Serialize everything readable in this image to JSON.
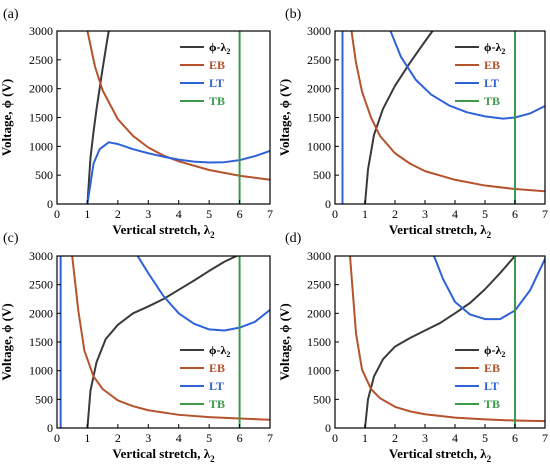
{
  "colors": {
    "phi": "#3a3a3a",
    "eb": "#b5532c",
    "lt": "#2f62d6",
    "tb": "#3e9a4a",
    "axis": "#000000"
  },
  "chart_data": [
    {
      "panel_label": "(a)",
      "type": "line",
      "xlabel": "Vertical stretch, λ",
      "xlabel_sub": "2",
      "ylabel": "Voltage, ϕ (V)",
      "xlim": [
        0,
        7
      ],
      "ylim": [
        0,
        3000
      ],
      "xticks": [
        0,
        1,
        2,
        3,
        4,
        5,
        6,
        7
      ],
      "yticks": [
        0,
        500,
        1000,
        1500,
        2000,
        2500,
        3000
      ],
      "legend_position": "top-right",
      "series": [
        {
          "name": "ϕ-λ",
          "name_sub": "2",
          "key": "phi",
          "x": [
            1.0,
            1.1,
            1.2,
            1.3,
            1.4,
            1.5,
            1.6,
            1.7
          ],
          "y": [
            0,
            800,
            1250,
            1650,
            2000,
            2350,
            2680,
            3000
          ]
        },
        {
          "name": "EB",
          "key": "eb",
          "x": [
            1.0,
            1.25,
            1.5,
            2.0,
            2.5,
            3.0,
            3.5,
            4.0,
            5.0,
            6.0,
            7.0
          ],
          "y": [
            3000,
            2380,
            1970,
            1470,
            1180,
            980,
            840,
            740,
            590,
            490,
            420
          ]
        },
        {
          "name": "LT",
          "key": "lt",
          "x": [
            1.0,
            1.2,
            1.4,
            1.7,
            2.0,
            2.5,
            3.0,
            3.5,
            4.0,
            4.5,
            5.0,
            5.5,
            6.0,
            6.5,
            7.0
          ],
          "y": [
            0,
            700,
            950,
            1070,
            1040,
            950,
            880,
            820,
            770,
            735,
            720,
            725,
            760,
            830,
            920
          ]
        },
        {
          "name": "TB",
          "key": "tb",
          "x": [
            6.0,
            6.0
          ],
          "y": [
            0,
            3000
          ]
        }
      ]
    },
    {
      "panel_label": "(b)",
      "type": "line",
      "xlabel": "Vertical stretch, λ",
      "xlabel_sub": "2",
      "ylabel": "Voltage, ϕ (V)",
      "xlim": [
        0,
        7
      ],
      "ylim": [
        0,
        3000
      ],
      "xticks": [
        0,
        1,
        2,
        3,
        4,
        5,
        6,
        7
      ],
      "yticks": [
        0,
        500,
        1000,
        1500,
        2000,
        2500,
        3000
      ],
      "legend_position": "top-right",
      "series": [
        {
          "name": "ϕ-λ",
          "name_sub": "2",
          "key": "phi",
          "x": [
            1.0,
            1.1,
            1.3,
            1.6,
            2.0,
            2.5,
            3.0,
            3.25
          ],
          "y": [
            0,
            600,
            1200,
            1650,
            2050,
            2450,
            2820,
            3000
          ]
        },
        {
          "name": "EB",
          "key": "eb",
          "x": [
            0.55,
            0.7,
            0.9,
            1.2,
            1.5,
            2.0,
            2.5,
            3.0,
            4.0,
            5.0,
            6.0,
            7.0
          ],
          "y": [
            3000,
            2450,
            1950,
            1500,
            1180,
            880,
            700,
            570,
            420,
            320,
            260,
            220
          ]
        },
        {
          "name": "LT",
          "key": "lt",
          "x": [
            1.85,
            2.2,
            2.7,
            3.2,
            3.8,
            4.4,
            5.0,
            5.6,
            6.0,
            6.5,
            7.0
          ],
          "y": [
            3000,
            2550,
            2150,
            1900,
            1710,
            1590,
            1520,
            1480,
            1500,
            1570,
            1700
          ]
        },
        {
          "name": "LT",
          "key": "lt",
          "x": [
            0.25,
            0.25
          ],
          "y": [
            0,
            3000
          ]
        },
        {
          "name": "TB",
          "key": "tb",
          "x": [
            6.0,
            6.0
          ],
          "y": [
            0,
            3000
          ]
        }
      ]
    },
    {
      "panel_label": "(c)",
      "type": "line",
      "xlabel": "Vertical stretch, λ",
      "xlabel_sub": "2",
      "ylabel": "Voltage, ϕ (V)",
      "xlim": [
        0,
        7
      ],
      "ylim": [
        0,
        3000
      ],
      "xticks": [
        0,
        1,
        2,
        3,
        4,
        5,
        6,
        7
      ],
      "yticks": [
        0,
        500,
        1000,
        1500,
        2000,
        2500,
        3000
      ],
      "legend_position": "lower-right",
      "series": [
        {
          "name": "ϕ-λ",
          "name_sub": "2",
          "key": "phi",
          "x": [
            1.0,
            1.1,
            1.3,
            1.6,
            2.0,
            2.5,
            3.0,
            3.5,
            4.0,
            4.5,
            5.0,
            5.5,
            5.9
          ],
          "y": [
            0,
            650,
            1150,
            1550,
            1800,
            2000,
            2120,
            2250,
            2410,
            2570,
            2740,
            2900,
            3000
          ]
        },
        {
          "name": "EB",
          "key": "eb",
          "x": [
            0.5,
            0.7,
            0.9,
            1.2,
            1.5,
            2.0,
            2.5,
            3.0,
            4.0,
            5.0,
            6.0,
            7.0
          ],
          "y": [
            3000,
            2050,
            1350,
            900,
            680,
            480,
            380,
            310,
            230,
            190,
            165,
            145
          ]
        },
        {
          "name": "LT",
          "key": "lt",
          "x": [
            2.65,
            3.0,
            3.5,
            4.0,
            4.5,
            5.0,
            5.5,
            6.0,
            6.5,
            7.0
          ],
          "y": [
            3000,
            2700,
            2300,
            2000,
            1820,
            1720,
            1700,
            1750,
            1850,
            2060
          ]
        },
        {
          "name": "LT",
          "key": "lt",
          "x": [
            0.12,
            0.12
          ],
          "y": [
            0,
            3000
          ]
        },
        {
          "name": "TB",
          "key": "tb",
          "x": [
            6.0,
            6.0
          ],
          "y": [
            0,
            3000
          ]
        }
      ]
    },
    {
      "panel_label": "(d)",
      "type": "line",
      "xlabel": "Vertical stretch, λ",
      "xlabel_sub": "2",
      "ylabel": "Voltage, ϕ (V)",
      "xlim": [
        0,
        7
      ],
      "ylim": [
        0,
        3000
      ],
      "xticks": [
        0,
        1,
        2,
        3,
        4,
        5,
        6,
        7
      ],
      "yticks": [
        0,
        500,
        1000,
        1500,
        2000,
        2500,
        3000
      ],
      "legend_position": "lower-right",
      "series": [
        {
          "name": "ϕ-λ",
          "name_sub": "2",
          "key": "phi",
          "x": [
            1.0,
            1.1,
            1.3,
            1.6,
            2.0,
            2.5,
            3.0,
            3.5,
            4.0,
            4.5,
            5.0,
            5.5,
            6.0
          ],
          "y": [
            0,
            500,
            900,
            1200,
            1420,
            1570,
            1700,
            1830,
            2000,
            2180,
            2420,
            2700,
            3000
          ]
        },
        {
          "name": "EB",
          "key": "eb",
          "x": [
            0.5,
            0.7,
            0.9,
            1.2,
            1.5,
            2.0,
            2.5,
            3.0,
            4.0,
            5.0,
            6.0,
            7.0
          ],
          "y": [
            3000,
            1650,
            1020,
            680,
            520,
            370,
            290,
            240,
            180,
            150,
            130,
            120
          ]
        },
        {
          "name": "LT",
          "key": "lt",
          "x": [
            3.3,
            3.6,
            4.0,
            4.5,
            5.0,
            5.5,
            6.0,
            6.5,
            7.0
          ],
          "y": [
            3000,
            2600,
            2200,
            1980,
            1900,
            1900,
            2050,
            2400,
            2950
          ]
        },
        {
          "name": "TB",
          "key": "tb",
          "x": [
            6.0,
            6.0
          ],
          "y": [
            0,
            3000
          ]
        }
      ]
    }
  ]
}
